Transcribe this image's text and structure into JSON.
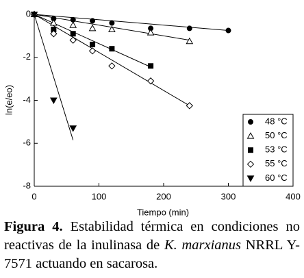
{
  "chart_data": {
    "type": "scatter",
    "xlabel": "Tiempo (min)",
    "ylabel": "ln(e/eo)",
    "xlim": [
      0,
      400
    ],
    "xticks": [
      0,
      100,
      200,
      300,
      400
    ],
    "ylim": [
      -8,
      0
    ],
    "yticks": [
      0,
      -2,
      -4,
      -6,
      -8
    ],
    "legend": "lower right",
    "series": [
      {
        "name": "48 °C",
        "marker": "circle",
        "filled": true,
        "color": "#000000",
        "x": [
          0,
          30,
          60,
          90,
          120,
          180,
          240,
          300
        ],
        "values": [
          0,
          -0.2,
          -0.25,
          -0.3,
          -0.4,
          -0.65,
          -0.65,
          -0.75
        ],
        "fit_x": [
          0,
          300
        ],
        "fit_values": [
          0,
          -0.75
        ]
      },
      {
        "name": "50 °C",
        "marker": "triangle-up",
        "filled": false,
        "color": "#000000",
        "x": [
          0,
          30,
          60,
          90,
          120,
          180,
          240
        ],
        "values": [
          0,
          -0.4,
          -0.5,
          -0.65,
          -0.7,
          -0.85,
          -1.25
        ],
        "fit_x": [
          0,
          240
        ],
        "fit_values": [
          0,
          -1.2
        ]
      },
      {
        "name": "53 °C",
        "marker": "square",
        "filled": true,
        "color": "#000000",
        "x": [
          0,
          30,
          60,
          90,
          120,
          180
        ],
        "values": [
          0,
          -0.7,
          -0.9,
          -1.4,
          -1.6,
          -2.4
        ],
        "fit_x": [
          0,
          180
        ],
        "fit_values": [
          0,
          -2.45
        ]
      },
      {
        "name": "55 °C",
        "marker": "diamond",
        "filled": false,
        "color": "#000000",
        "x": [
          0,
          30,
          60,
          90,
          120,
          180,
          240
        ],
        "values": [
          0,
          -0.9,
          -1.2,
          -1.7,
          -2.4,
          -3.1,
          -4.25
        ],
        "fit_x": [
          0,
          240
        ],
        "fit_values": [
          0,
          -4.25
        ]
      },
      {
        "name": "60 °C",
        "marker": "triangle-down",
        "filled": true,
        "color": "#000000",
        "x": [
          0,
          30,
          60
        ],
        "values": [
          0,
          -4.0,
          -5.3
        ],
        "fit_x": [
          0,
          60
        ],
        "fit_values": [
          0,
          -5.85
        ]
      }
    ]
  },
  "caption": {
    "label": "Figura 4.",
    "text1": " Estabilidad térmica en condiciones no reactivas de la inulinasa de ",
    "species": "K. marxianus",
    "text2": " NRRL Y-7571 actuando en sacarosa."
  }
}
